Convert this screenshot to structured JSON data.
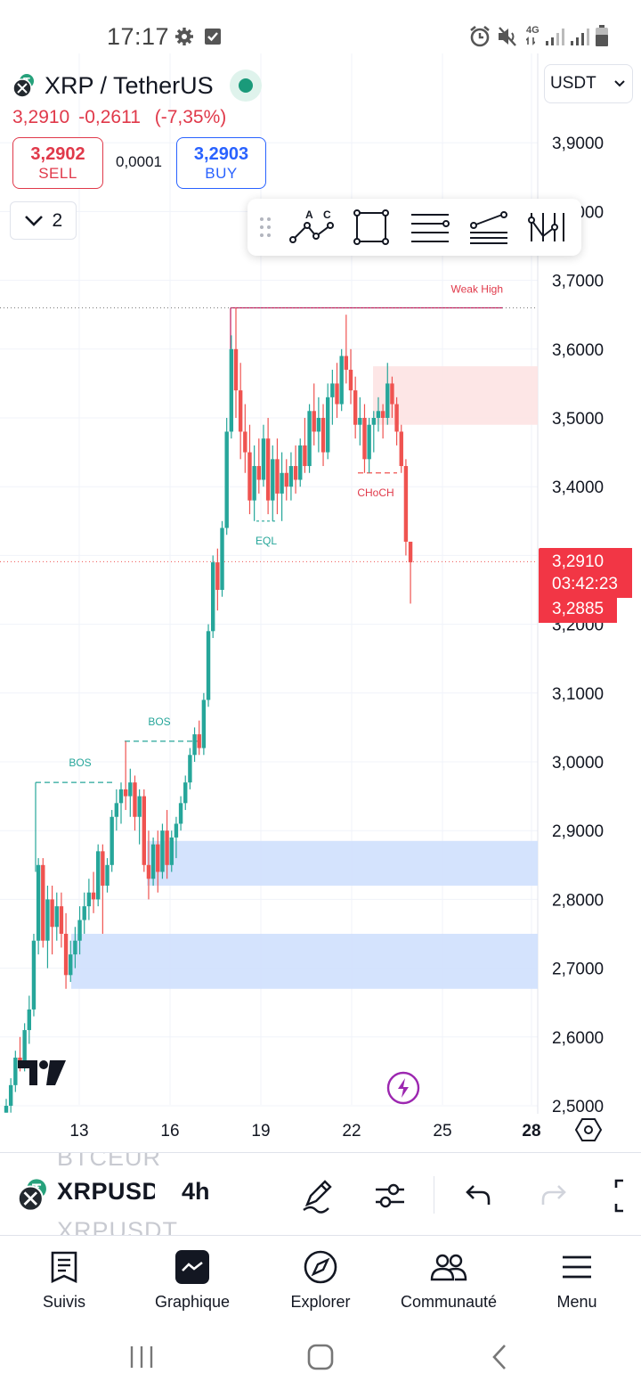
{
  "status_bar": {
    "time": "17:17",
    "network": "4G"
  },
  "header": {
    "symbol_title": "XRP / TetherUS",
    "last_price": "3,2910",
    "change": "-0,2611",
    "change_percent": "(-7,35%)",
    "sell_price": "3,2902",
    "sell_label": "SELL",
    "spread": "0,0001",
    "buy_price": "3,2903",
    "buy_label": "BUY",
    "indicator_count": "2",
    "currency": "USDT"
  },
  "colors": {
    "up": "#26a69a",
    "down": "#ef5350",
    "sell": "#e0394a",
    "buy": "#2962ff",
    "demand_zone": "#cfe0fd",
    "supply_zone": "#fde3e3"
  },
  "drawing_toolbar": {
    "tools": [
      "drag-handle-icon",
      "abcd-pattern-icon",
      "rectangle-icon",
      "parallel-channel-icon",
      "trend-angle-icon",
      "vertical-lines-icon"
    ],
    "abcd_labels": [
      "A",
      "C"
    ]
  },
  "chart_data": {
    "type": "candlestick",
    "symbol": "XRPUSDT",
    "interval": "4h",
    "y_axis": {
      "ticks": [
        "3,9000",
        "3,8000",
        "3,7000",
        "3,6000",
        "3,5000",
        "3,4000",
        "3,3000",
        "3,2000",
        "3,1000",
        "3,0000",
        "2,9000",
        "2,8000",
        "2,7000",
        "2,6000",
        "2,5000"
      ],
      "range": [
        2.5,
        3.9
      ]
    },
    "x_axis": {
      "ticks": [
        "13",
        "16",
        "19",
        "22",
        "25",
        "28"
      ]
    },
    "current_price": 3.291,
    "price_badge": {
      "price": "3,2910",
      "countdown": "03:42:23",
      "low": "3,2885"
    },
    "annotations": [
      {
        "text": "BOS",
        "level": 2.97,
        "color": "#26a69a"
      },
      {
        "text": "BOS",
        "level": 3.03,
        "color": "#26a69a"
      },
      {
        "text": "EQL",
        "level": 3.35,
        "color": "#26a69a"
      },
      {
        "text": "CHoCH",
        "level": 3.42,
        "color": "#ef5350"
      },
      {
        "text": "Weak High",
        "level": 3.66,
        "color": "#ef5350"
      }
    ],
    "zones": [
      {
        "kind": "supply",
        "top": 3.575,
        "bottom": 3.49
      },
      {
        "kind": "demand",
        "top": 2.885,
        "bottom": 2.82
      },
      {
        "kind": "demand",
        "top": 2.75,
        "bottom": 2.67
      }
    ],
    "candles": [
      {
        "o": 2.49,
        "h": 2.51,
        "l": 2.49,
        "c": 2.5
      },
      {
        "o": 2.5,
        "h": 2.54,
        "l": 2.49,
        "c": 2.53
      },
      {
        "o": 2.53,
        "h": 2.58,
        "l": 2.52,
        "c": 2.57
      },
      {
        "o": 2.57,
        "h": 2.6,
        "l": 2.55,
        "c": 2.56
      },
      {
        "o": 2.56,
        "h": 2.62,
        "l": 2.55,
        "c": 2.61
      },
      {
        "o": 2.61,
        "h": 2.66,
        "l": 2.59,
        "c": 2.64
      },
      {
        "o": 2.64,
        "h": 2.75,
        "l": 2.63,
        "c": 2.74
      },
      {
        "o": 2.74,
        "h": 2.86,
        "l": 2.72,
        "c": 2.85
      },
      {
        "o": 2.85,
        "h": 2.86,
        "l": 2.73,
        "c": 2.74
      },
      {
        "o": 2.74,
        "h": 2.82,
        "l": 2.7,
        "c": 2.8
      },
      {
        "o": 2.8,
        "h": 2.82,
        "l": 2.72,
        "c": 2.76
      },
      {
        "o": 2.76,
        "h": 2.81,
        "l": 2.74,
        "c": 2.79
      },
      {
        "o": 2.79,
        "h": 2.81,
        "l": 2.73,
        "c": 2.75
      },
      {
        "o": 2.75,
        "h": 2.78,
        "l": 2.67,
        "c": 2.69
      },
      {
        "o": 2.69,
        "h": 2.74,
        "l": 2.68,
        "c": 2.72
      },
      {
        "o": 2.72,
        "h": 2.76,
        "l": 2.7,
        "c": 2.74
      },
      {
        "o": 2.74,
        "h": 2.79,
        "l": 2.72,
        "c": 2.77
      },
      {
        "o": 2.77,
        "h": 2.81,
        "l": 2.75,
        "c": 2.79
      },
      {
        "o": 2.79,
        "h": 2.83,
        "l": 2.77,
        "c": 2.81
      },
      {
        "o": 2.81,
        "h": 2.84,
        "l": 2.78,
        "c": 2.8
      },
      {
        "o": 2.8,
        "h": 2.88,
        "l": 2.79,
        "c": 2.87
      },
      {
        "o": 2.87,
        "h": 2.88,
        "l": 2.75,
        "c": 2.82
      },
      {
        "o": 2.82,
        "h": 2.86,
        "l": 2.81,
        "c": 2.85
      },
      {
        "o": 2.85,
        "h": 2.93,
        "l": 2.84,
        "c": 2.92
      },
      {
        "o": 2.92,
        "h": 2.96,
        "l": 2.9,
        "c": 2.94
      },
      {
        "o": 2.94,
        "h": 2.97,
        "l": 2.91,
        "c": 2.96
      },
      {
        "o": 2.96,
        "h": 3.03,
        "l": 2.93,
        "c": 2.95
      },
      {
        "o": 2.95,
        "h": 2.99,
        "l": 2.92,
        "c": 2.97
      },
      {
        "o": 2.97,
        "h": 2.98,
        "l": 2.9,
        "c": 2.92
      },
      {
        "o": 2.92,
        "h": 2.96,
        "l": 2.88,
        "c": 2.95
      },
      {
        "o": 2.95,
        "h": 2.96,
        "l": 2.84,
        "c": 2.85
      },
      {
        "o": 2.85,
        "h": 2.9,
        "l": 2.8,
        "c": 2.83
      },
      {
        "o": 2.83,
        "h": 2.89,
        "l": 2.82,
        "c": 2.88
      },
      {
        "o": 2.88,
        "h": 2.9,
        "l": 2.81,
        "c": 2.84
      },
      {
        "o": 2.84,
        "h": 2.91,
        "l": 2.83,
        "c": 2.9
      },
      {
        "o": 2.9,
        "h": 2.93,
        "l": 2.83,
        "c": 2.85
      },
      {
        "o": 2.85,
        "h": 2.9,
        "l": 2.84,
        "c": 2.89
      },
      {
        "o": 2.89,
        "h": 2.92,
        "l": 2.86,
        "c": 2.91
      },
      {
        "o": 2.91,
        "h": 2.95,
        "l": 2.9,
        "c": 2.94
      },
      {
        "o": 2.94,
        "h": 2.98,
        "l": 2.93,
        "c": 2.97
      },
      {
        "o": 2.97,
        "h": 3.02,
        "l": 2.96,
        "c": 3.01
      },
      {
        "o": 3.01,
        "h": 3.05,
        "l": 3.0,
        "c": 3.04
      },
      {
        "o": 3.04,
        "h": 3.06,
        "l": 3.01,
        "c": 3.02
      },
      {
        "o": 3.02,
        "h": 3.1,
        "l": 3.01,
        "c": 3.09
      },
      {
        "o": 3.09,
        "h": 3.2,
        "l": 3.08,
        "c": 3.19
      },
      {
        "o": 3.19,
        "h": 3.3,
        "l": 3.18,
        "c": 3.29
      },
      {
        "o": 3.29,
        "h": 3.31,
        "l": 3.22,
        "c": 3.25
      },
      {
        "o": 3.25,
        "h": 3.35,
        "l": 3.24,
        "c": 3.34
      },
      {
        "o": 3.34,
        "h": 3.5,
        "l": 3.33,
        "c": 3.48
      },
      {
        "o": 3.48,
        "h": 3.62,
        "l": 3.47,
        "c": 3.6
      },
      {
        "o": 3.6,
        "h": 3.66,
        "l": 3.5,
        "c": 3.54
      },
      {
        "o": 3.54,
        "h": 3.58,
        "l": 3.44,
        "c": 3.48
      },
      {
        "o": 3.48,
        "h": 3.52,
        "l": 3.42,
        "c": 3.45
      },
      {
        "o": 3.45,
        "h": 3.49,
        "l": 3.36,
        "c": 3.38
      },
      {
        "o": 3.38,
        "h": 3.46,
        "l": 3.35,
        "c": 3.43
      },
      {
        "o": 3.43,
        "h": 3.47,
        "l": 3.39,
        "c": 3.41
      },
      {
        "o": 3.41,
        "h": 3.49,
        "l": 3.4,
        "c": 3.47
      },
      {
        "o": 3.47,
        "h": 3.5,
        "l": 3.36,
        "c": 3.38
      },
      {
        "o": 3.38,
        "h": 3.46,
        "l": 3.35,
        "c": 3.44
      },
      {
        "o": 3.44,
        "h": 3.47,
        "l": 3.36,
        "c": 3.39
      },
      {
        "o": 3.39,
        "h": 3.45,
        "l": 3.35,
        "c": 3.42
      },
      {
        "o": 3.42,
        "h": 3.44,
        "l": 3.38,
        "c": 3.4
      },
      {
        "o": 3.4,
        "h": 3.45,
        "l": 3.38,
        "c": 3.43
      },
      {
        "o": 3.43,
        "h": 3.46,
        "l": 3.39,
        "c": 3.41
      },
      {
        "o": 3.41,
        "h": 3.47,
        "l": 3.4,
        "c": 3.46
      },
      {
        "o": 3.46,
        "h": 3.5,
        "l": 3.42,
        "c": 3.43
      },
      {
        "o": 3.43,
        "h": 3.52,
        "l": 3.42,
        "c": 3.51
      },
      {
        "o": 3.51,
        "h": 3.55,
        "l": 3.46,
        "c": 3.48
      },
      {
        "o": 3.48,
        "h": 3.53,
        "l": 3.45,
        "c": 3.5
      },
      {
        "o": 3.5,
        "h": 3.52,
        "l": 3.43,
        "c": 3.45
      },
      {
        "o": 3.45,
        "h": 3.55,
        "l": 3.44,
        "c": 3.53
      },
      {
        "o": 3.53,
        "h": 3.57,
        "l": 3.49,
        "c": 3.55
      },
      {
        "o": 3.55,
        "h": 3.58,
        "l": 3.5,
        "c": 3.52
      },
      {
        "o": 3.52,
        "h": 3.6,
        "l": 3.51,
        "c": 3.59
      },
      {
        "o": 3.59,
        "h": 3.65,
        "l": 3.55,
        "c": 3.57
      },
      {
        "o": 3.57,
        "h": 3.6,
        "l": 3.52,
        "c": 3.54
      },
      {
        "o": 3.54,
        "h": 3.56,
        "l": 3.47,
        "c": 3.49
      },
      {
        "o": 3.49,
        "h": 3.53,
        "l": 3.46,
        "c": 3.5
      },
      {
        "o": 3.5,
        "h": 3.52,
        "l": 3.42,
        "c": 3.44
      },
      {
        "o": 3.44,
        "h": 3.5,
        "l": 3.42,
        "c": 3.49
      },
      {
        "o": 3.49,
        "h": 3.51,
        "l": 3.45,
        "c": 3.5
      },
      {
        "o": 3.5,
        "h": 3.53,
        "l": 3.48,
        "c": 3.51
      },
      {
        "o": 3.51,
        "h": 3.52,
        "l": 3.47,
        "c": 3.5
      },
      {
        "o": 3.5,
        "h": 3.58,
        "l": 3.49,
        "c": 3.55
      },
      {
        "o": 3.55,
        "h": 3.56,
        "l": 3.5,
        "c": 3.52
      },
      {
        "o": 3.52,
        "h": 3.53,
        "l": 3.46,
        "c": 3.48
      },
      {
        "o": 3.48,
        "h": 3.49,
        "l": 3.42,
        "c": 3.43
      },
      {
        "o": 3.43,
        "h": 3.44,
        "l": 3.3,
        "c": 3.32
      },
      {
        "o": 3.32,
        "h": 3.32,
        "l": 3.23,
        "c": 3.29
      }
    ]
  },
  "chart_toolbar": {
    "ghost_above": "BTCEUR",
    "symbol": "XRPUSDT",
    "ghost_below": "XRPUSDT",
    "interval": "4h"
  },
  "bottom_nav": {
    "items": [
      {
        "label": "Suivis",
        "icon": "watchlist-icon"
      },
      {
        "label": "Graphique",
        "icon": "chart-icon"
      },
      {
        "label": "Explorer",
        "icon": "compass-icon"
      },
      {
        "label": "Communauté",
        "icon": "community-icon"
      },
      {
        "label": "Menu",
        "icon": "menu-icon"
      }
    ]
  }
}
